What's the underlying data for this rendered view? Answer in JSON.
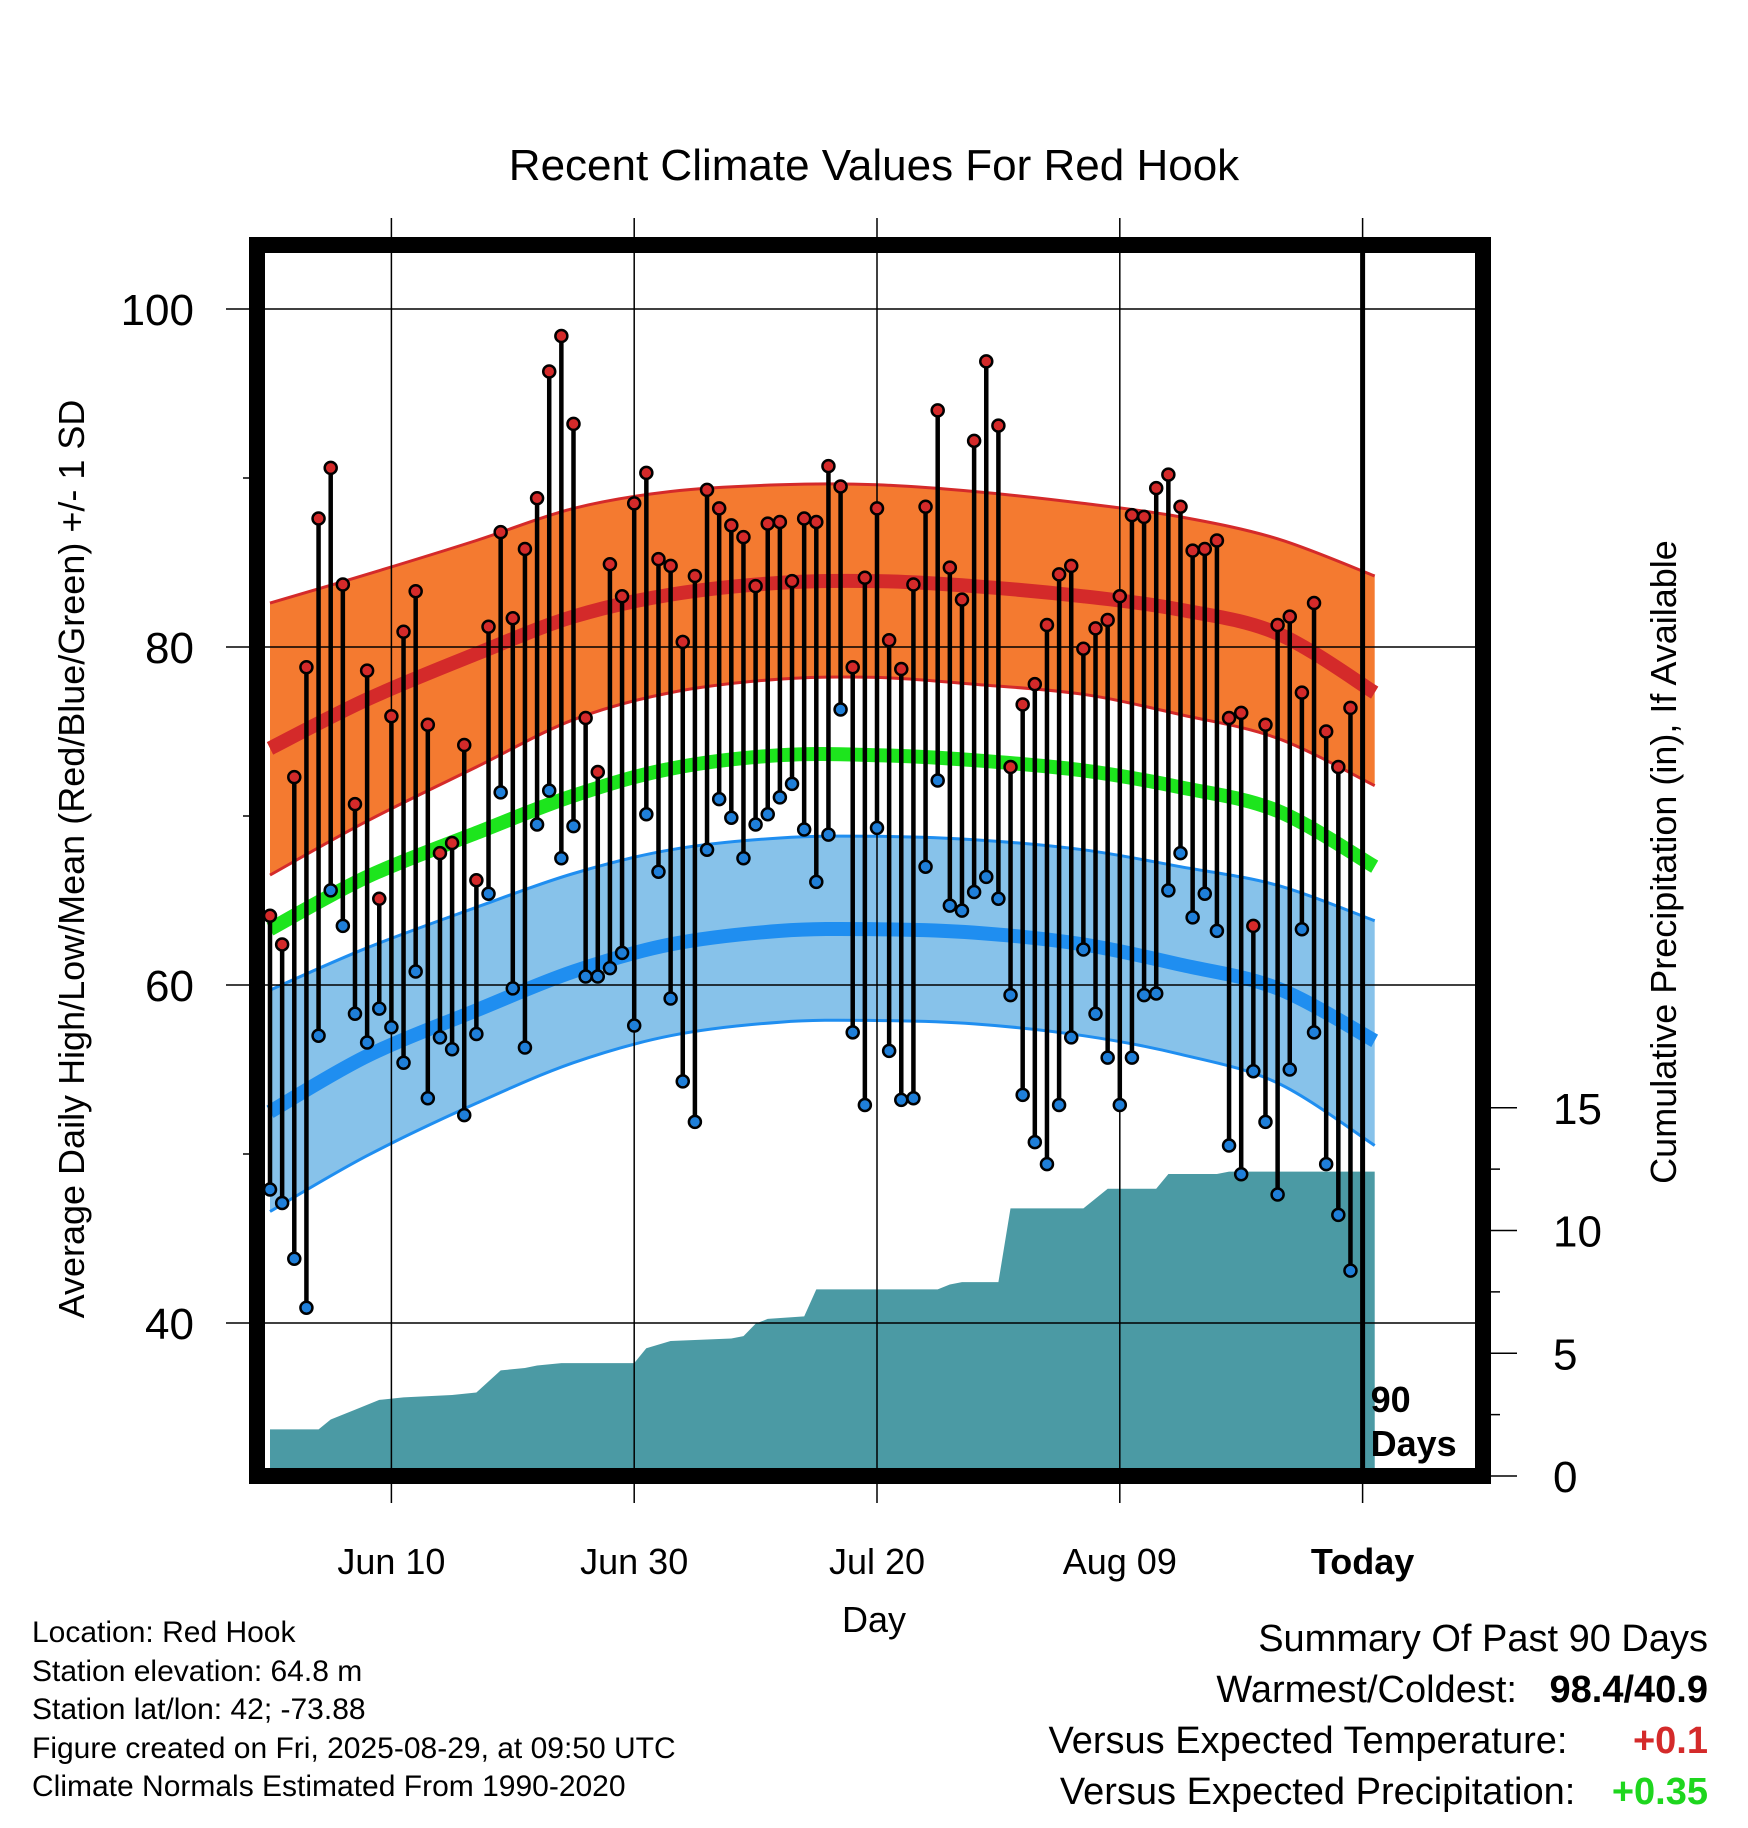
{
  "chart_data": {
    "type": "line",
    "title": "Recent Climate Values For Red Hook",
    "xlabel": "Day",
    "ylabel": "Average Daily High/Low/Mean (Red/Blue/Green) +/- 1 SD",
    "y2label": "Cumulative Precipitation (in), If Available",
    "x_tick_labels": [
      "Jun 10",
      "Jun 30",
      "Jul 20",
      "Aug 09",
      "Today"
    ],
    "y_ticks": [
      40,
      60,
      80,
      100
    ],
    "y2_ticks": [
      0,
      5,
      10,
      15
    ],
    "ylim": [
      31,
      104
    ],
    "y2lim": [
      0,
      15.5
    ],
    "today_marker": "90\nDays",
    "grid": true,
    "series": [
      {
        "name": "Daily High",
        "color": "#d42a2a",
        "x": [
          0,
          1,
          2,
          3,
          4,
          5,
          6,
          7,
          8,
          9,
          10,
          11,
          12,
          13,
          14,
          15,
          16,
          17,
          18,
          19,
          20,
          21,
          22,
          23,
          24,
          25,
          26,
          27,
          28,
          29,
          30,
          31,
          32,
          33,
          34,
          35,
          36,
          37,
          38,
          39,
          40,
          41,
          42,
          43,
          44,
          45,
          46,
          47,
          48,
          49,
          50,
          51,
          52,
          53,
          54,
          55,
          56,
          57,
          58,
          59,
          60,
          61,
          62,
          63,
          64,
          65,
          66,
          67,
          68,
          69,
          70,
          71,
          72,
          73,
          74,
          75,
          76,
          77,
          78,
          79,
          80,
          81,
          82,
          83,
          84,
          85,
          86,
          87,
          88,
          89
        ],
        "values": [
          64.1,
          62.4,
          72.3,
          78.8,
          87.6,
          90.6,
          83.7,
          70.7,
          78.6,
          65.1,
          75.9,
          80.9,
          83.3,
          75.4,
          67.8,
          68.4,
          74.2,
          66.2,
          81.2,
          86.8,
          81.7,
          85.8,
          88.8,
          96.3,
          98.4,
          93.2,
          75.8,
          72.6,
          84.9,
          83.0,
          88.5,
          90.3,
          85.2,
          84.8,
          80.3,
          84.2,
          89.3,
          88.2,
          87.2,
          86.5,
          83.6,
          87.3,
          87.4,
          83.9,
          87.6,
          87.4,
          90.7,
          89.5,
          78.8,
          84.1,
          88.2,
          80.4,
          78.7,
          83.7,
          88.3,
          94.0,
          84.7,
          82.8,
          92.2,
          96.9,
          93.1,
          72.9,
          76.6,
          77.8,
          81.3,
          84.3,
          84.8,
          79.9,
          81.1,
          81.6,
          83.0,
          87.8,
          87.7,
          89.4,
          90.2,
          88.3,
          85.7,
          85.8,
          86.3,
          75.8,
          76.1,
          63.5,
          75.4,
          81.3,
          81.8,
          77.3,
          82.6,
          75.0,
          72.9,
          76.4
        ]
      },
      {
        "name": "Daily Low",
        "color": "#1f7fd9",
        "x": [
          0,
          1,
          2,
          3,
          4,
          5,
          6,
          7,
          8,
          9,
          10,
          11,
          12,
          13,
          14,
          15,
          16,
          17,
          18,
          19,
          20,
          21,
          22,
          23,
          24,
          25,
          26,
          27,
          28,
          29,
          30,
          31,
          32,
          33,
          34,
          35,
          36,
          37,
          38,
          39,
          40,
          41,
          42,
          43,
          44,
          45,
          46,
          47,
          48,
          49,
          50,
          51,
          52,
          53,
          54,
          55,
          56,
          57,
          58,
          59,
          60,
          61,
          62,
          63,
          64,
          65,
          66,
          67,
          68,
          69,
          70,
          71,
          72,
          73,
          74,
          75,
          76,
          77,
          78,
          79,
          80,
          81,
          82,
          83,
          84,
          85,
          86,
          87,
          88,
          89
        ],
        "values": [
          47.9,
          47.1,
          43.8,
          40.9,
          57.0,
          65.6,
          63.5,
          58.3,
          56.6,
          58.6,
          57.5,
          55.4,
          60.8,
          53.3,
          56.9,
          56.2,
          52.3,
          57.1,
          65.4,
          71.4,
          59.8,
          56.3,
          69.5,
          71.5,
          67.5,
          69.4,
          60.5,
          60.5,
          61.0,
          61.9,
          57.6,
          70.1,
          66.7,
          59.2,
          54.3,
          51.9,
          68.0,
          71.0,
          69.9,
          67.5,
          69.5,
          70.1,
          71.1,
          71.9,
          69.2,
          66.1,
          68.9,
          76.3,
          57.2,
          52.9,
          69.3,
          56.1,
          53.2,
          53.3,
          67.0,
          72.1,
          64.7,
          64.4,
          65.5,
          66.4,
          65.1,
          59.4,
          53.5,
          50.7,
          49.4,
          52.9,
          56.9,
          62.1,
          58.3,
          55.7,
          52.9,
          55.7,
          59.4,
          59.5,
          65.6,
          67.8,
          64.0,
          65.4,
          63.2,
          50.5,
          48.8,
          54.9,
          51.9,
          47.6,
          55.0,
          63.3,
          57.2,
          49.4,
          46.4,
          43.1
        ]
      },
      {
        "name": "Normal High",
        "color": "#d42a2a",
        "x": [
          0,
          8,
          17,
          25,
          33,
          42,
          50,
          58,
          67,
          75,
          83,
          91
        ],
        "values": [
          74.0,
          76.9,
          79.6,
          81.8,
          83.1,
          83.8,
          83.9,
          83.6,
          83.0,
          82.2,
          80.8,
          77.3
        ]
      },
      {
        "name": "Normal High Band (-1 SD, +1 SD)",
        "color": "#f47a30",
        "x": [
          0,
          8,
          17,
          25,
          33,
          42,
          50,
          58,
          67,
          75,
          83,
          91
        ],
        "low": [
          66.5,
          69.7,
          72.9,
          75.7,
          77.3,
          78.1,
          78.2,
          77.8,
          77.2,
          76.0,
          74.6,
          71.8
        ],
        "high": [
          82.6,
          84.3,
          86.3,
          88.2,
          89.2,
          89.6,
          89.6,
          89.2,
          88.5,
          87.7,
          86.4,
          84.2
        ]
      },
      {
        "name": "Normal Mean",
        "color": "#1de51d",
        "x": [
          0,
          8,
          17,
          25,
          33,
          42,
          50,
          58,
          67,
          75,
          83,
          91
        ],
        "values": [
          63.3,
          66.4,
          69.0,
          71.2,
          72.8,
          73.6,
          73.6,
          73.3,
          72.7,
          71.7,
          70.3,
          67.0
        ]
      },
      {
        "name": "Normal Low",
        "color": "#1f8ef0",
        "x": [
          0,
          8,
          17,
          25,
          33,
          42,
          50,
          58,
          67,
          75,
          83,
          91
        ],
        "values": [
          52.5,
          55.8,
          58.5,
          60.8,
          62.4,
          63.2,
          63.3,
          63.1,
          62.4,
          61.2,
          59.8,
          56.7
        ]
      },
      {
        "name": "Normal Low Band (-1 SD, +1 SD)",
        "color": "#87c2ea",
        "x": [
          0,
          8,
          17,
          25,
          33,
          42,
          50,
          58,
          67,
          75,
          83,
          91
        ],
        "low": [
          46.6,
          49.9,
          53.0,
          55.4,
          57.0,
          57.8,
          57.9,
          57.7,
          57.0,
          55.9,
          54.2,
          50.5
        ],
        "high": [
          59.7,
          62.2,
          64.6,
          66.6,
          68.0,
          68.7,
          68.8,
          68.6,
          68.0,
          67.0,
          65.9,
          63.8
        ]
      },
      {
        "name": "Cumulative Precipitation",
        "color": "#4b9aa4",
        "x": [
          0,
          4,
          5,
          7,
          9,
          11,
          15,
          17,
          19,
          21,
          22,
          24,
          25,
          30,
          31,
          33,
          38,
          39,
          40,
          41,
          44,
          45,
          55,
          56,
          57,
          60,
          61,
          67,
          68,
          69,
          73,
          74,
          78,
          79,
          82,
          83,
          91
        ],
        "values": [
          1.9,
          1.9,
          2.3,
          2.7,
          3.1,
          3.2,
          3.3,
          3.4,
          4.3,
          4.4,
          4.5,
          4.6,
          4.6,
          4.6,
          5.2,
          5.5,
          5.6,
          5.7,
          6.2,
          6.4,
          6.5,
          7.6,
          7.6,
          7.8,
          7.9,
          7.9,
          10.9,
          10.9,
          11.3,
          11.7,
          11.7,
          12.3,
          12.3,
          12.4,
          12.4,
          12.4,
          12.4
        ]
      }
    ]
  },
  "station": {
    "location": "Location: Red Hook",
    "elevation": "Station elevation: 64.8 m",
    "latlon": "Station lat/lon: 42; -73.88",
    "created": "Figure created on Fri, 2025-08-29, at 09:50 UTC",
    "normals": "Climate Normals Estimated From 1990-2020"
  },
  "summary": {
    "title": "Summary Of Past 90 Days",
    "warmest_label": "Warmest/Coldest:",
    "warmest_value": "98.4/40.9",
    "temp_label": "Versus Expected Temperature:",
    "temp_value": "+0.1",
    "temp_color": "#d42a2a",
    "precip_label": "Versus Expected Precipitation:",
    "precip_value": "+0.35",
    "precip_color": "#1ed61e"
  }
}
